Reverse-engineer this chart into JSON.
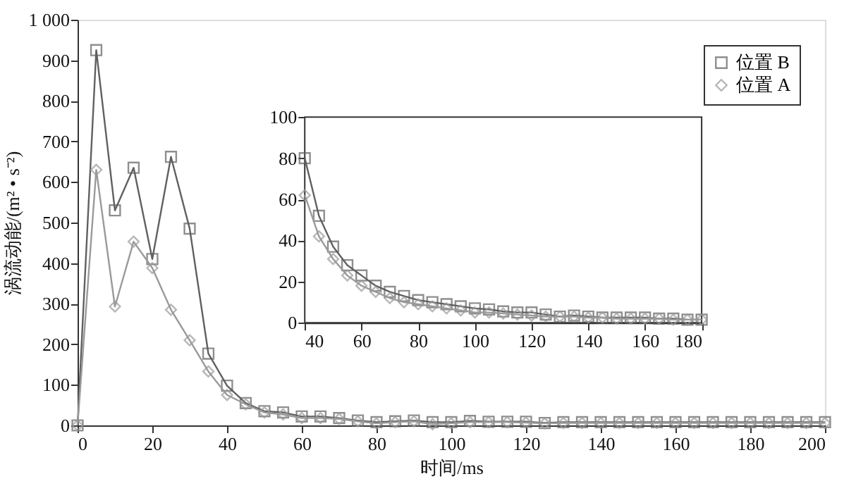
{
  "chart_data": [
    {
      "type": "line",
      "xlabel": "时间/ms",
      "ylabel": "涡流动能/(m² • s⁻²)",
      "x": [
        0,
        5,
        10,
        15,
        20,
        25,
        30,
        35,
        40,
        45,
        50,
        55,
        60,
        65,
        70,
        75,
        80,
        85,
        90,
        95,
        100,
        105,
        110,
        115,
        120,
        125,
        130,
        135,
        140,
        145,
        150,
        155,
        160,
        165,
        170,
        175,
        180,
        185,
        190,
        195,
        200
      ],
      "series": [
        {
          "name": "位置 B",
          "color": "#606060",
          "marker": "square",
          "values": [
            0,
            925,
            530,
            635,
            410,
            662,
            485,
            177,
            98,
            55,
            35,
            32,
            22,
            22,
            18,
            12,
            8,
            10,
            12,
            8,
            8,
            11,
            9,
            9,
            9,
            6,
            8,
            8,
            8,
            8,
            8,
            8,
            8,
            8,
            8,
            8,
            8,
            8,
            8,
            8,
            8
          ]
        },
        {
          "name": "位置 A",
          "color": "#9a9a9a",
          "marker": "diamond",
          "values": [
            0,
            630,
            293,
            453,
            388,
            285,
            210,
            133,
            75,
            52,
            32,
            27,
            18,
            18,
            16,
            10,
            5,
            8,
            10,
            3,
            5,
            8,
            8,
            8,
            7,
            5,
            6,
            6,
            6,
            6,
            6,
            6,
            6,
            6,
            6,
            6,
            6,
            6,
            6,
            6,
            6
          ]
        }
      ],
      "xlim": [
        0,
        200
      ],
      "xticks": [
        0,
        20,
        40,
        60,
        80,
        100,
        120,
        140,
        160,
        180,
        200
      ],
      "ylim": [
        0,
        1000
      ],
      "yticks": [
        0,
        100,
        200,
        300,
        400,
        500,
        600,
        700,
        800,
        900,
        {
          "value": 1000,
          "label": "1 000"
        }
      ],
      "grid": false,
      "legend": "top right"
    },
    {
      "type": "line",
      "x": [
        40,
        45,
        50,
        55,
        60,
        65,
        70,
        75,
        80,
        85,
        90,
        95,
        100,
        105,
        110,
        115,
        120,
        125,
        130,
        135,
        140,
        145,
        150,
        155,
        160,
        165,
        170,
        175,
        180
      ],
      "series": [
        {
          "color": "#606060",
          "marker": "square",
          "values": [
            80,
            52,
            37,
            28,
            23,
            18,
            15,
            13,
            11,
            10,
            9,
            8,
            7,
            6.5,
            5.5,
            5,
            5,
            4,
            3,
            3.5,
            3,
            2.5,
            2.5,
            2.5,
            2.5,
            2,
            2,
            1.5,
            1.5
          ]
        },
        {
          "color": "#9a9a9a",
          "marker": "diamond",
          "values": [
            62,
            42,
            31,
            23,
            18,
            15,
            12,
            10,
            9,
            8,
            7,
            6,
            5,
            5,
            4.5,
            4,
            3.5,
            3,
            3,
            3,
            2.5,
            2.5,
            2,
            2,
            2,
            2,
            1.5,
            1.5,
            1.5
          ]
        }
      ],
      "xlim": [
        40,
        180
      ],
      "xticks": [
        40,
        60,
        80,
        100,
        120,
        140,
        160,
        180
      ],
      "ylim": [
        0,
        100
      ],
      "yticks": [
        0,
        20,
        40,
        60,
        80,
        100
      ],
      "grid": false,
      "legend": false
    }
  ]
}
